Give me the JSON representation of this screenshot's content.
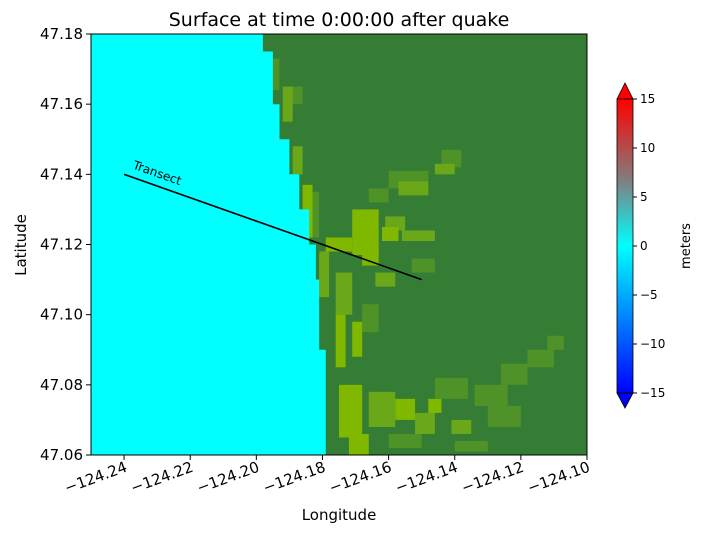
{
  "chart_data": {
    "type": "heatmap",
    "title": "Surface at time 0:00:00 after quake",
    "xlabel": "Longitude",
    "ylabel": "Latitude",
    "xlim": [
      -124.25,
      -124.1
    ],
    "ylim": [
      47.06,
      47.18
    ],
    "xticks": [
      -124.24,
      -124.22,
      -124.2,
      -124.18,
      -124.16,
      -124.14,
      -124.12,
      -124.1
    ],
    "xtick_labels": [
      "−124.24",
      "−124.22",
      "−124.20",
      "−124.18",
      "−124.16",
      "−124.14",
      "−124.12",
      "−124.10"
    ],
    "yticks": [
      47.06,
      47.08,
      47.1,
      47.12,
      47.14,
      47.16,
      47.18
    ],
    "ytick_labels": [
      "47.06",
      "47.08",
      "47.10",
      "47.12",
      "47.14",
      "47.16",
      "47.18"
    ],
    "colorbar": {
      "label": "meters",
      "range": [
        -15,
        15
      ],
      "ticks": [
        -15,
        -10,
        -5,
        0,
        5,
        10,
        15
      ],
      "tick_labels": [
        "−15",
        "−10",
        "−5",
        "0",
        "5",
        "10",
        "15"
      ],
      "extend": "both"
    },
    "surface_value_m": 0,
    "colors": {
      "water": "#00ffff",
      "land": "#357d35",
      "shore_light": "#80b800",
      "shore_mid": "#6aa81a",
      "shore_dark": "#4e9228",
      "transect_line": "#000000"
    },
    "transect": {
      "label": "Transect",
      "start": [
        -124.24,
        47.14
      ],
      "end": [
        -124.15,
        47.11
      ]
    },
    "coastline": [
      [
        47.18,
        -124.198
      ],
      [
        47.177,
        -124.198
      ],
      [
        47.175,
        -124.195
      ],
      [
        47.17,
        -124.195
      ],
      [
        47.16,
        -124.193
      ],
      [
        47.15,
        -124.19
      ],
      [
        47.14,
        -124.187
      ],
      [
        47.13,
        -124.184
      ],
      [
        47.12,
        -124.182
      ],
      [
        47.11,
        -124.181
      ],
      [
        47.1,
        -124.181
      ],
      [
        47.09,
        -124.179
      ],
      [
        47.08,
        -124.179
      ],
      [
        47.07,
        -124.179
      ],
      [
        47.06,
        -124.177
      ]
    ],
    "shore_vegetation": {
      "light": [
        [
          -124.186,
          -124.183,
          47.137,
          47.122
        ],
        [
          -124.179,
          -124.171,
          47.122,
          47.118
        ],
        [
          -124.171,
          -124.163,
          47.13,
          47.117
        ],
        [
          -124.162,
          -124.157,
          47.125,
          47.121
        ],
        [
          -124.168,
          -124.163,
          47.118,
          47.114
        ],
        [
          -124.176,
          -124.173,
          47.1,
          47.085
        ],
        [
          -124.171,
          -124.168,
          47.098,
          47.088
        ],
        [
          -124.175,
          -124.168,
          47.08,
          47.065
        ],
        [
          -124.172,
          -124.166,
          47.066,
          47.06
        ],
        [
          -124.158,
          -124.152,
          47.076,
          47.07
        ],
        [
          -124.148,
          -124.144,
          47.076,
          47.072
        ]
      ],
      "mid": [
        [
          -124.192,
          -124.189,
          47.165,
          47.155
        ],
        [
          -124.189,
          -124.186,
          47.148,
          47.14
        ],
        [
          -124.181,
          -124.178,
          47.118,
          47.105
        ],
        [
          -124.176,
          -124.171,
          47.112,
          47.1
        ],
        [
          -124.161,
          -124.155,
          47.128,
          47.124
        ],
        [
          -124.156,
          -124.146,
          47.124,
          47.121
        ],
        [
          -124.164,
          -124.158,
          47.112,
          47.108
        ],
        [
          -124.157,
          -124.148,
          47.138,
          47.134
        ],
        [
          -124.146,
          -124.14,
          47.143,
          47.14
        ],
        [
          -124.166,
          -124.158,
          47.078,
          47.068
        ],
        [
          -124.152,
          -124.146,
          47.072,
          47.066
        ],
        [
          -124.141,
          -124.135,
          47.07,
          47.066
        ]
      ],
      "dark": [
        [
          -124.196,
          -124.193,
          47.173,
          47.164
        ],
        [
          -124.19,
          -124.186,
          47.165,
          47.16
        ],
        [
          -124.184,
          -124.181,
          47.135,
          47.122
        ],
        [
          -124.16,
          -124.148,
          47.141,
          47.136
        ],
        [
          -124.144,
          -124.138,
          47.147,
          47.142
        ],
        [
          -124.166,
          -124.16,
          47.136,
          47.132
        ],
        [
          -124.153,
          -124.146,
          47.116,
          47.112
        ],
        [
          -124.168,
          -124.163,
          47.103,
          47.095
        ],
        [
          -124.146,
          -124.136,
          47.082,
          47.076
        ],
        [
          -124.134,
          -124.124,
          47.08,
          47.074
        ],
        [
          -124.126,
          -124.118,
          47.086,
          47.08
        ],
        [
          -124.118,
          -124.11,
          47.09,
          47.085
        ],
        [
          -124.112,
          -124.107,
          47.094,
          47.09
        ],
        [
          -124.16,
          -124.15,
          47.066,
          47.062
        ],
        [
          -124.14,
          -124.13,
          47.064,
          47.061
        ],
        [
          -124.13,
          -124.12,
          47.074,
          47.068
        ]
      ]
    }
  }
}
